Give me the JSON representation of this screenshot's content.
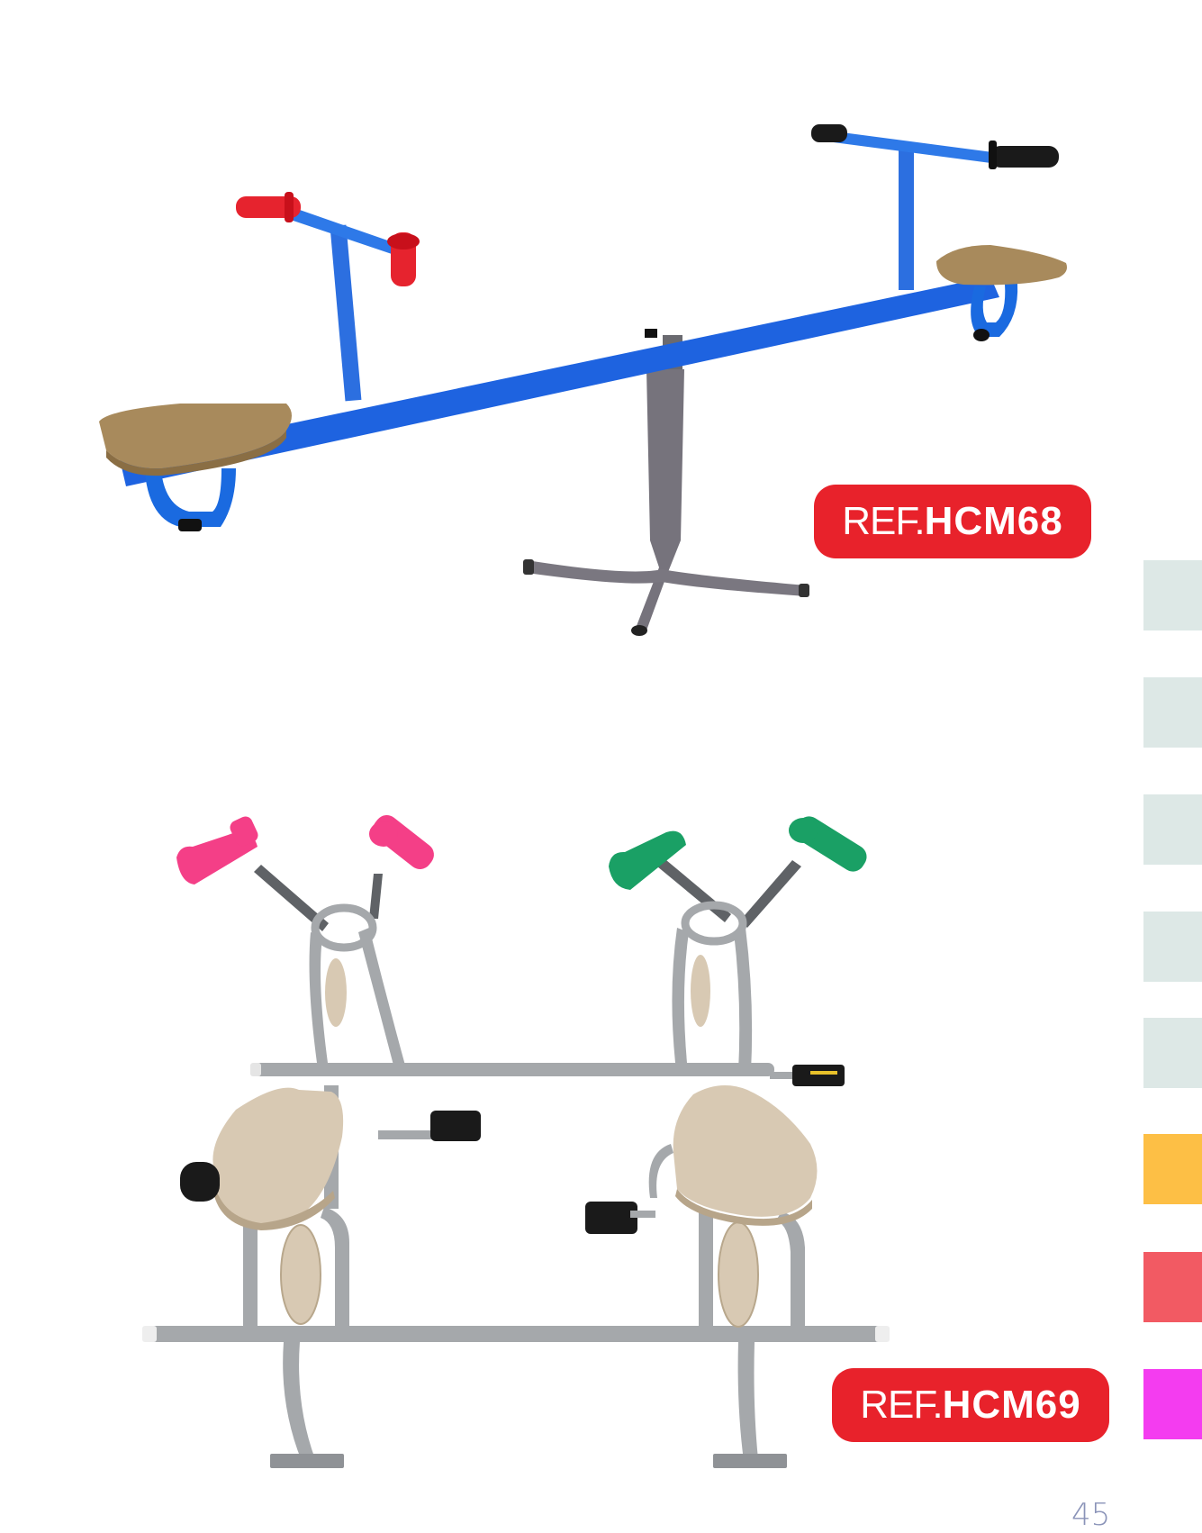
{
  "products": [
    {
      "ref_prefix": "REF.",
      "ref_code": "HCM68"
    },
    {
      "ref_prefix": "REF.",
      "ref_code": "HCM69"
    }
  ],
  "side_tabs": [
    {
      "color": "#dde8e6"
    },
    {
      "color": "#dde8e6"
    },
    {
      "color": "#dde8e6"
    },
    {
      "color": "#dde8e6"
    },
    {
      "color": "#dde8e6"
    },
    {
      "color": "#fdbf45"
    },
    {
      "color": "#f25a63"
    },
    {
      "color": "#f43cf0"
    }
  ],
  "colors": {
    "badge": "#e8222b",
    "seesaw_frame": "#1e63e0",
    "seesaw_pivot": "#76737c",
    "grip_red": "#e6232e",
    "grip_black": "#1a1a1a",
    "seat_wood": "#a88a5c",
    "bike_frame": "#a5a8ab",
    "grip_pink": "#f43f87",
    "grip_green": "#1aa065",
    "bike_seat": "#d8c9b3"
  },
  "page_number": "45"
}
